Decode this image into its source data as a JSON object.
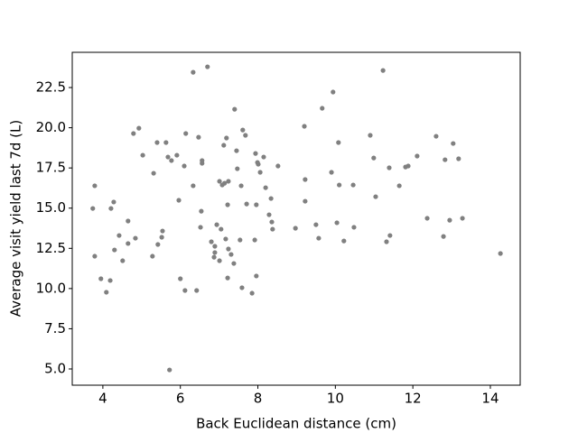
{
  "chart_data": {
    "type": "scatter",
    "xlabel": "Back Euclidean distance (cm)",
    "ylabel": "Average visit yield last 7d (L)",
    "color": "#808080",
    "x": [
      3.74,
      3.79,
      3.79,
      3.95,
      4.09,
      4.19,
      4.21,
      4.28,
      4.3,
      4.42,
      4.51,
      4.65,
      4.65,
      4.79,
      4.84,
      4.93,
      5.03,
      5.28,
      5.31,
      5.4,
      5.42,
      5.52,
      5.54,
      5.63,
      5.68,
      5.77,
      5.91,
      5.96,
      6.0,
      6.1,
      6.12,
      6.14,
      6.33,
      6.33,
      6.42,
      6.47,
      6.52,
      6.54,
      6.56,
      6.56,
      6.7,
      6.8,
      6.87,
      6.89,
      6.89,
      6.94,
      7.01,
      7.01,
      7.05,
      7.08,
      7.12,
      7.14,
      7.17,
      7.19,
      7.22,
      7.22,
      7.24,
      7.24,
      7.31,
      7.38,
      7.4,
      7.45,
      7.47,
      7.54,
      7.57,
      7.59,
      7.61,
      7.68,
      7.71,
      7.85,
      7.92,
      7.94,
      7.96,
      7.96,
      7.99,
      8.01,
      8.06,
      8.15,
      8.2,
      8.29,
      8.34,
      8.36,
      8.38,
      8.52,
      8.97,
      9.2,
      9.22,
      9.22,
      9.5,
      9.57,
      9.66,
      9.9,
      9.94,
      10.04,
      10.08,
      10.1,
      10.22,
      10.46,
      10.48,
      10.9,
      10.99,
      11.04,
      11.23,
      11.32,
      11.39,
      11.41,
      11.65,
      11.81,
      11.88,
      12.11,
      12.37,
      12.6,
      12.79,
      12.83,
      12.95,
      13.04,
      13.18,
      13.28,
      14.26,
      5.72
    ],
    "values": [
      14.98,
      16.39,
      12.01,
      10.61,
      9.77,
      10.5,
      14.98,
      15.38,
      12.4,
      13.3,
      11.73,
      14.2,
      12.8,
      19.64,
      13.13,
      19.97,
      18.29,
      12.01,
      17.17,
      19.08,
      12.74,
      13.19,
      13.58,
      19.08,
      18.18,
      17.96,
      18.29,
      15.49,
      10.61,
      17.62,
      9.88,
      19.64,
      16.39,
      23.45,
      9.88,
      19.41,
      13.81,
      14.81,
      17.96,
      17.79,
      23.79,
      12.91,
      11.95,
      12.63,
      12.24,
      13.97,
      16.67,
      11.73,
      13.69,
      16.44,
      18.91,
      16.55,
      13.08,
      19.36,
      10.66,
      15.21,
      12.46,
      16.67,
      12.12,
      11.56,
      21.15,
      18.57,
      17.45,
      13.02,
      16.39,
      10.05,
      19.86,
      19.53,
      15.26,
      9.71,
      13.02,
      18.4,
      15.21,
      10.78,
      17.84,
      17.73,
      17.23,
      18.18,
      16.27,
      14.59,
      15.6,
      14.14,
      13.69,
      17.62,
      13.75,
      20.09,
      16.78,
      15.43,
      13.97,
      13.13,
      21.21,
      17.23,
      22.22,
      14.09,
      19.08,
      16.44,
      12.96,
      16.44,
      13.81,
      19.53,
      18.12,
      15.71,
      23.56,
      12.91,
      17.51,
      13.3,
      16.39,
      17.56,
      17.62,
      18.24,
      14.37,
      19.47,
      13.24,
      18.01,
      14.25,
      19.02,
      18.07,
      14.37,
      12.18,
      4.94
    ],
    "xlim": [
      3.21,
      14.77
    ],
    "ylim": [
      3.99,
      24.69
    ],
    "xticks": [
      4,
      6,
      8,
      10,
      12,
      14
    ],
    "yticks": [
      {
        "value": 5,
        "label": "5.0"
      },
      7.5,
      {
        "value": 10,
        "label": "10.0"
      },
      12.5,
      {
        "value": 15,
        "label": "15.0"
      },
      17.5,
      {
        "value": 20,
        "label": "20.0"
      },
      22.5
    ]
  }
}
